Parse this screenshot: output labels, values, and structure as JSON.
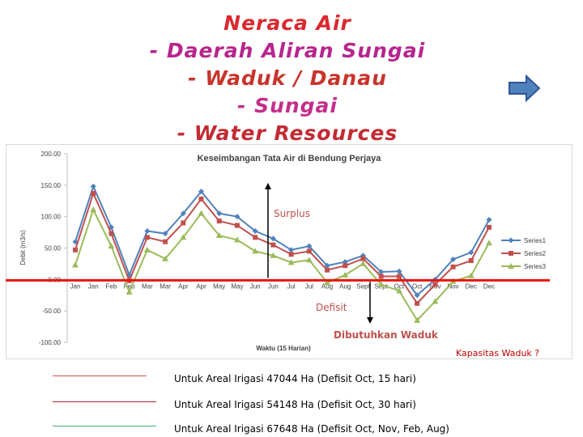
{
  "slide": {
    "title_lines": [
      "Neraca Air",
      "- Daerah Aliran Sungai",
      "- Waduk / Danau",
      "- Sungai",
      "- Water Resources"
    ],
    "next_icon": "arrow-right-icon",
    "colors": {
      "title_red": "#d9292f",
      "title_magenta": "#b7258e",
      "next_arrow": "#4f81bd"
    }
  },
  "annotations": {
    "surplus": "Surplus",
    "defisit": "Defisit",
    "dibutuhkan": "Dibutuhkan Waduk",
    "kapasitas": "Kapasitas Waduk ?"
  },
  "legend_notes": [
    {
      "text": "Untuk Areal Irigasi 47044 Ha  (Defisit Oct, 15 hari)",
      "color": "#d9534f"
    },
    {
      "text": "Untuk Areal Irigasi 54148 Ha (Defisit  Oct, 30 hari)",
      "color": "#a52a2a"
    },
    {
      "text": "Untuk Areal Irigasi 67648 Ha (Defisit Oct, Nov, Feb, Aug)",
      "color": "#3cb371"
    }
  ],
  "chart_data": {
    "type": "line",
    "title": "Keseimbangan Tata Air di Bendung Perjaya",
    "xlabel": "Waktu (15 Harian)",
    "ylabel": "Debit (m3/s)",
    "ylim": [
      -100,
      200
    ],
    "yticks": [
      "200.00",
      "150.00",
      "100.00",
      "50.00",
      "0.00",
      "-50.00",
      "-100.00"
    ],
    "categories": [
      "Jan",
      "Jan",
      "Feb",
      "Feb",
      "Mar",
      "Mar",
      "Apr",
      "Apr",
      "May",
      "May",
      "Jun",
      "Jun",
      "Jul",
      "Jul",
      "Aug",
      "Aug",
      "Sept",
      "Sept",
      "Oct",
      "Oct",
      "Nov",
      "Nov",
      "Dec",
      "Dec"
    ],
    "legend_position": "right",
    "series": [
      {
        "name": "Series1",
        "color": "#4f81bd",
        "marker": "diamond",
        "values": [
          60,
          148,
          83,
          7,
          77,
          73,
          105,
          140,
          105,
          100,
          77,
          65,
          47,
          53,
          22,
          28,
          38,
          12,
          13,
          -25,
          0,
          32,
          43,
          95
        ]
      },
      {
        "name": "Series2",
        "color": "#c0504d",
        "marker": "square",
        "values": [
          47,
          137,
          73,
          -2,
          67,
          60,
          90,
          128,
          93,
          86,
          67,
          55,
          40,
          45,
          15,
          22,
          33,
          5,
          5,
          -38,
          -8,
          20,
          30,
          83
        ]
      },
      {
        "name": "Series3",
        "color": "#9bbb59",
        "marker": "triangle",
        "values": [
          23,
          111,
          53,
          -20,
          47,
          33,
          67,
          105,
          70,
          63,
          45,
          38,
          27,
          31,
          -5,
          7,
          25,
          -8,
          -18,
          -65,
          -35,
          -3,
          6,
          58
        ]
      }
    ]
  }
}
